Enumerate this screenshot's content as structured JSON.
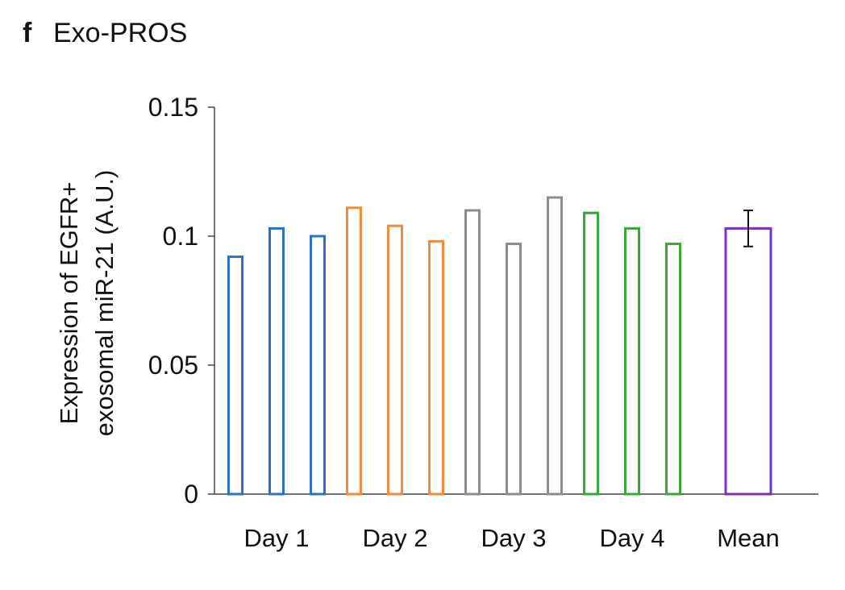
{
  "panel_letter": "f",
  "panel_title": "Exo-PROS",
  "chart_data": {
    "type": "bar",
    "ylabel_line1": "Expression of EGFR+",
    "ylabel_line2": "exosomal miR-21 (A.U.)",
    "ylim": [
      0,
      0.15
    ],
    "yticks": [
      {
        "value": 0,
        "label": "0"
      },
      {
        "value": 0.05,
        "label": "0.05"
      },
      {
        "value": 0.1,
        "label": "0.1"
      },
      {
        "value": 0.15,
        "label": "0.15"
      }
    ],
    "groups": [
      {
        "label": "Day 1",
        "color": "#2e6fc7",
        "values": [
          0.092,
          0.103,
          0.1
        ]
      },
      {
        "label": "Day 2",
        "color": "#f28a3c",
        "values": [
          0.111,
          0.104,
          0.098
        ]
      },
      {
        "label": "Day 3",
        "color": "#8c8c8c",
        "values": [
          0.11,
          0.097,
          0.115
        ]
      },
      {
        "label": "Day 4",
        "color": "#3aa63a",
        "values": [
          0.109,
          0.103,
          0.097
        ]
      },
      {
        "label": "Mean",
        "color": "#7b2fbf",
        "values": [
          0.103
        ],
        "error": 0.007
      }
    ],
    "grid": false,
    "legend": false
  }
}
